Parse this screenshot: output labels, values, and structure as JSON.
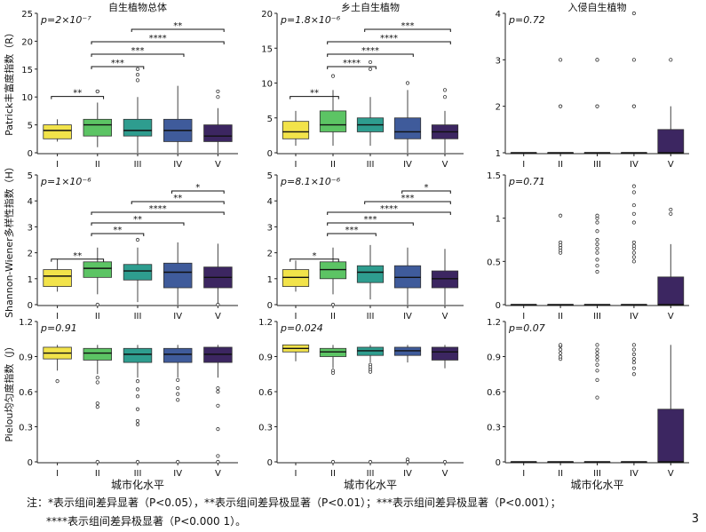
{
  "colors": [
    "#f2e34a",
    "#5cc464",
    "#2e9d8f",
    "#3f5b9b",
    "#3c2661"
  ],
  "col_titles": [
    "自生植物总体",
    "乡土自生植物",
    "入侵自生植物"
  ],
  "row_labels": [
    "Patrick丰富度指数（R）",
    "Shannon-Wiener多样性指数（H）",
    "Pielou均匀度指数（J）"
  ],
  "x_title": "城市化水平",
  "note_line1": "注：*表示组间差异显著（P<0.05），**表示组间差异极显著（P<0.01）；***表示组间差异极显著（P<0.001）；",
  "note_line2": "****表示组间差异极显著（P<0.000 1）。",
  "page_number": "3",
  "chart_data": [
    {
      "type": "box",
      "id": "R-total",
      "ptext": "p=2×10⁻⁷",
      "categories": [
        "I",
        "II",
        "III",
        "IV",
        "V"
      ],
      "ylim": [
        0,
        25
      ],
      "yticks": [
        0,
        5,
        10,
        15,
        20,
        25
      ],
      "boxes": [
        {
          "wl": 2,
          "q1": 2.5,
          "med": 4,
          "q3": 5,
          "wh": 6,
          "out": []
        },
        {
          "wl": 1,
          "q1": 3,
          "med": 5,
          "q3": 6,
          "wh": 9,
          "out": [
            11,
            11
          ]
        },
        {
          "wl": 0,
          "q1": 3,
          "med": 4,
          "q3": 6,
          "wh": 10,
          "out": [
            13,
            14,
            15
          ]
        },
        {
          "wl": 0,
          "q1": 2,
          "med": 4,
          "q3": 6,
          "wh": 12,
          "out": []
        },
        {
          "wl": 0,
          "q1": 2,
          "med": 3,
          "q3": 5,
          "wh": 8,
          "out": [
            10,
            11
          ]
        }
      ],
      "brackets": [
        {
          "i": 0,
          "j": 1,
          "label": "**"
        },
        {
          "i": 1,
          "j": 2,
          "label": "***"
        },
        {
          "i": 1,
          "j": 3,
          "label": "***"
        },
        {
          "i": 1,
          "j": 4,
          "label": "****"
        },
        {
          "i": 2,
          "j": 4,
          "label": "**"
        }
      ]
    },
    {
      "type": "box",
      "id": "R-native",
      "ptext": "p=1.8×10⁻⁶",
      "categories": [
        "I",
        "II",
        "III",
        "IV",
        "V"
      ],
      "ylim": [
        0,
        20
      ],
      "yticks": [
        0,
        5,
        10,
        15,
        20
      ],
      "boxes": [
        {
          "wl": 1,
          "q1": 2,
          "med": 3,
          "q3": 4.5,
          "wh": 6,
          "out": []
        },
        {
          "wl": 1,
          "q1": 3,
          "med": 4,
          "q3": 6,
          "wh": 9,
          "out": [
            11
          ]
        },
        {
          "wl": 1,
          "q1": 3,
          "med": 4,
          "q3": 5,
          "wh": 8,
          "out": [
            12,
            13
          ]
        },
        {
          "wl": 0,
          "q1": 2,
          "med": 3,
          "q3": 5,
          "wh": 9,
          "out": [
            10
          ]
        },
        {
          "wl": 0,
          "q1": 2,
          "med": 3,
          "q3": 4,
          "wh": 6,
          "out": [
            8,
            9
          ]
        }
      ],
      "brackets": [
        {
          "i": 0,
          "j": 1,
          "label": "**"
        },
        {
          "i": 1,
          "j": 2,
          "label": "****"
        },
        {
          "i": 1,
          "j": 3,
          "label": "****"
        },
        {
          "i": 1,
          "j": 4,
          "label": "****"
        },
        {
          "i": 2,
          "j": 4,
          "label": "***"
        }
      ]
    },
    {
      "type": "box",
      "id": "R-invasive",
      "ptext": "p=0.72",
      "categories": [
        "I",
        "II",
        "III",
        "IV",
        "V"
      ],
      "ylim": [
        1,
        4
      ],
      "yticks": [
        1,
        2,
        3,
        4
      ],
      "boxes": [
        {
          "wl": 1,
          "q1": 1,
          "med": 1,
          "q3": 1,
          "wh": 1,
          "out": []
        },
        {
          "wl": 1,
          "q1": 1,
          "med": 1,
          "q3": 1,
          "wh": 1,
          "out": [
            2,
            2,
            3
          ]
        },
        {
          "wl": 1,
          "q1": 1,
          "med": 1,
          "q3": 1,
          "wh": 1,
          "out": [
            2,
            2,
            3,
            3
          ]
        },
        {
          "wl": 1,
          "q1": 1,
          "med": 1,
          "q3": 1,
          "wh": 1,
          "out": [
            2,
            2,
            3,
            4
          ]
        },
        {
          "wl": 1,
          "q1": 1,
          "med": 1,
          "q3": 1.5,
          "wh": 2,
          "out": [
            3
          ]
        }
      ],
      "brackets": []
    },
    {
      "type": "box",
      "id": "H-total",
      "ptext": "p=1×10⁻⁶",
      "categories": [
        "I",
        "II",
        "III",
        "IV",
        "V"
      ],
      "ylim": [
        0,
        5
      ],
      "yticks": [
        0,
        1,
        2,
        3,
        4,
        5
      ],
      "boxes": [
        {
          "wl": 0.5,
          "q1": 0.7,
          "med": 1.1,
          "q3": 1.35,
          "wh": 1.75,
          "out": []
        },
        {
          "wl": 0.4,
          "q1": 1.05,
          "med": 1.4,
          "q3": 1.65,
          "wh": 2.2,
          "out": [
            0
          ]
        },
        {
          "wl": 0.1,
          "q1": 0.95,
          "med": 1.3,
          "q3": 1.55,
          "wh": 2.2,
          "out": [
            2.5
          ]
        },
        {
          "wl": 0,
          "q1": 0.65,
          "med": 1.25,
          "q3": 1.6,
          "wh": 2.4,
          "out": []
        },
        {
          "wl": 0,
          "q1": 0.65,
          "med": 1.05,
          "q3": 1.45,
          "wh": 2.35,
          "out": [
            0
          ]
        }
      ],
      "brackets": [
        {
          "i": 0,
          "j": 1,
          "label": "**"
        },
        {
          "i": 1,
          "j": 2,
          "label": "**"
        },
        {
          "i": 1,
          "j": 3,
          "label": "**"
        },
        {
          "i": 1,
          "j": 4,
          "label": "****"
        },
        {
          "i": 2,
          "j": 4,
          "label": "**"
        },
        {
          "i": 3,
          "j": 4,
          "label": "*"
        }
      ]
    },
    {
      "type": "box",
      "id": "H-native",
      "ptext": "p=8.1×10⁻⁶",
      "categories": [
        "I",
        "II",
        "III",
        "IV",
        "V"
      ],
      "ylim": [
        0,
        5
      ],
      "yticks": [
        0,
        1,
        2,
        3,
        4,
        5
      ],
      "boxes": [
        {
          "wl": 0.5,
          "q1": 0.7,
          "med": 1.05,
          "q3": 1.35,
          "wh": 1.7,
          "out": []
        },
        {
          "wl": 0.4,
          "q1": 1.0,
          "med": 1.35,
          "q3": 1.65,
          "wh": 2.2,
          "out": [
            0
          ]
        },
        {
          "wl": 0.2,
          "q1": 0.85,
          "med": 1.25,
          "q3": 1.5,
          "wh": 2.3,
          "out": []
        },
        {
          "wl": 0,
          "q1": 0.65,
          "med": 1.05,
          "q3": 1.5,
          "wh": 2.2,
          "out": []
        },
        {
          "wl": 0,
          "q1": 0.65,
          "med": 1.0,
          "q3": 1.3,
          "wh": 2.15,
          "out": []
        }
      ],
      "brackets": [
        {
          "i": 0,
          "j": 1,
          "label": "*"
        },
        {
          "i": 1,
          "j": 2,
          "label": "***"
        },
        {
          "i": 1,
          "j": 3,
          "label": "***"
        },
        {
          "i": 1,
          "j": 4,
          "label": "****"
        },
        {
          "i": 2,
          "j": 4,
          "label": "***"
        },
        {
          "i": 3,
          "j": 4,
          "label": "*"
        }
      ]
    },
    {
      "type": "box",
      "id": "H-invasive",
      "ptext": "p=0.71",
      "categories": [
        "I",
        "II",
        "III",
        "IV",
        "V"
      ],
      "ylim": [
        0,
        1.5
      ],
      "yticks": [
        0,
        0.5,
        1.0,
        1.5
      ],
      "boxes": [
        {
          "wl": 0,
          "q1": 0,
          "med": 0,
          "q3": 0,
          "wh": 0,
          "out": []
        },
        {
          "wl": 0,
          "q1": 0,
          "med": 0,
          "q3": 0,
          "wh": 0,
          "out": [
            0.6,
            0.63,
            0.66,
            0.69,
            0.72,
            1.03
          ]
        },
        {
          "wl": 0,
          "q1": 0,
          "med": 0,
          "q3": 0,
          "wh": 0,
          "out": [
            0.38,
            0.45,
            0.52,
            0.6,
            0.65,
            0.7,
            0.75,
            0.85,
            0.95,
            1.0,
            1.03
          ]
        },
        {
          "wl": 0,
          "q1": 0,
          "med": 0,
          "q3": 0,
          "wh": 0,
          "out": [
            0.5,
            0.55,
            0.6,
            0.65,
            0.68,
            0.72,
            0.95,
            1.05,
            1.15,
            1.3,
            1.37
          ]
        },
        {
          "wl": 0,
          "q1": 0,
          "med": 0,
          "q3": 0.32,
          "wh": 0.7,
          "out": [
            1.05,
            1.1
          ]
        }
      ],
      "brackets": []
    },
    {
      "type": "box",
      "id": "J-total",
      "ptext": "p=0.91",
      "categories": [
        "I",
        "II",
        "III",
        "IV",
        "V"
      ],
      "ylim": [
        0,
        1.2
      ],
      "yticks": [
        0,
        0.3,
        0.6,
        0.9,
        1.2
      ],
      "boxes": [
        {
          "wl": 0.78,
          "q1": 0.88,
          "med": 0.93,
          "q3": 0.98,
          "wh": 1.0,
          "out": [
            0.69
          ]
        },
        {
          "wl": 0.75,
          "q1": 0.87,
          "med": 0.93,
          "q3": 0.97,
          "wh": 1.0,
          "out": [
            0.72,
            0.68,
            0.5,
            0.47,
            0.0
          ]
        },
        {
          "wl": 0.72,
          "q1": 0.85,
          "med": 0.92,
          "q3": 0.97,
          "wh": 1.0,
          "out": [
            0.69,
            0.62,
            0.56,
            0.45,
            0.35,
            0.32,
            0.0
          ]
        },
        {
          "wl": 0.72,
          "q1": 0.85,
          "med": 0.92,
          "q3": 0.97,
          "wh": 1.0,
          "out": [
            0.7,
            0.63,
            0.58,
            0.53,
            0.0
          ]
        },
        {
          "wl": 0.72,
          "q1": 0.85,
          "med": 0.92,
          "q3": 0.98,
          "wh": 1.0,
          "out": [
            0.63,
            0.6,
            0.48,
            0.28,
            0.05,
            0.0
          ]
        }
      ],
      "brackets": []
    },
    {
      "type": "box",
      "id": "J-native",
      "ptext": "p=0.024",
      "categories": [
        "I",
        "II",
        "III",
        "IV",
        "V"
      ],
      "ylim": [
        0,
        1.2
      ],
      "yticks": [
        0,
        0.3,
        0.6,
        0.9,
        1.2
      ],
      "boxes": [
        {
          "wl": 0.86,
          "q1": 0.94,
          "med": 0.97,
          "q3": 1.0,
          "wh": 1.0,
          "out": []
        },
        {
          "wl": 0.8,
          "q1": 0.9,
          "med": 0.94,
          "q3": 0.97,
          "wh": 1.0,
          "out": [
            0.78,
            0.76,
            0.0
          ]
        },
        {
          "wl": 0.85,
          "q1": 0.91,
          "med": 0.95,
          "q3": 0.98,
          "wh": 1.0,
          "out": [
            0.83,
            0.81,
            0.79,
            0.77,
            0.0
          ]
        },
        {
          "wl": 0.85,
          "q1": 0.91,
          "med": 0.95,
          "q3": 0.98,
          "wh": 1.0,
          "out": [
            0.02,
            0.0
          ]
        },
        {
          "wl": 0.8,
          "q1": 0.87,
          "med": 0.94,
          "q3": 0.98,
          "wh": 1.0,
          "out": [
            0.0
          ]
        }
      ],
      "brackets": []
    },
    {
      "type": "box",
      "id": "J-invasive",
      "ptext": "p=0.07",
      "categories": [
        "I",
        "II",
        "III",
        "IV",
        "V"
      ],
      "ylim": [
        0,
        1.2
      ],
      "yticks": [
        0,
        0.3,
        0.6,
        0.9,
        1.2
      ],
      "boxes": [
        {
          "wl": 0,
          "q1": 0,
          "med": 0,
          "q3": 0,
          "wh": 0,
          "out": []
        },
        {
          "wl": 0,
          "q1": 0,
          "med": 0,
          "q3": 0,
          "wh": 0,
          "out": [
            0.88,
            0.9,
            0.93,
            0.96,
            0.99,
            1.0
          ]
        },
        {
          "wl": 0,
          "q1": 0,
          "med": 0,
          "q3": 0,
          "wh": 0,
          "out": [
            0.55,
            0.7,
            0.78,
            0.83,
            0.87,
            0.9,
            0.93,
            0.96,
            1.0
          ]
        },
        {
          "wl": 0,
          "q1": 0,
          "med": 0,
          "q3": 0,
          "wh": 0,
          "out": [
            0.75,
            0.8,
            0.85,
            0.88,
            0.92,
            0.96,
            1.0
          ]
        },
        {
          "wl": 0,
          "q1": 0,
          "med": 0,
          "q3": 0.45,
          "wh": 1.0,
          "out": []
        }
      ],
      "brackets": []
    }
  ]
}
